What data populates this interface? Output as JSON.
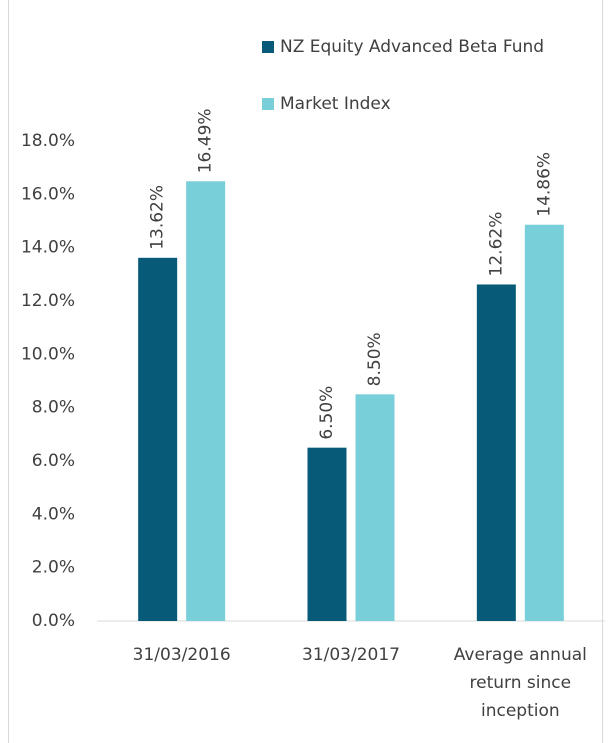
{
  "chart_data": {
    "type": "bar",
    "categories": [
      "31/03/2016",
      "31/03/2017",
      "Average annual return since inception"
    ],
    "series": [
      {
        "name": "NZ Equity Advanced Beta Fund",
        "color": "#075a78",
        "values": [
          13.62,
          6.5,
          12.62
        ],
        "value_labels": [
          "13.62%",
          "6.50%",
          "12.62%"
        ]
      },
      {
        "name": "Market Index",
        "color": "#78cfd9",
        "values": [
          16.49,
          8.5,
          14.86
        ],
        "value_labels": [
          "16.49%",
          "8.50%",
          "14.86%"
        ]
      }
    ],
    "ylim": [
      0,
      18
    ],
    "yticks": [
      {
        "value": 0,
        "label": "0.0%"
      },
      {
        "value": 2,
        "label": "2.0%"
      },
      {
        "value": 4,
        "label": "4.0%"
      },
      {
        "value": 6,
        "label": "6.0%"
      },
      {
        "value": 8,
        "label": "8.0%"
      },
      {
        "value": 10,
        "label": "10.0%"
      },
      {
        "value": 12,
        "label": "12.0%"
      },
      {
        "value": 14,
        "label": "14.0%"
      },
      {
        "value": 16,
        "label": "16.0%"
      },
      {
        "value": 18,
        "label": "18.0%"
      }
    ],
    "grid": false,
    "legend": "top-right"
  }
}
